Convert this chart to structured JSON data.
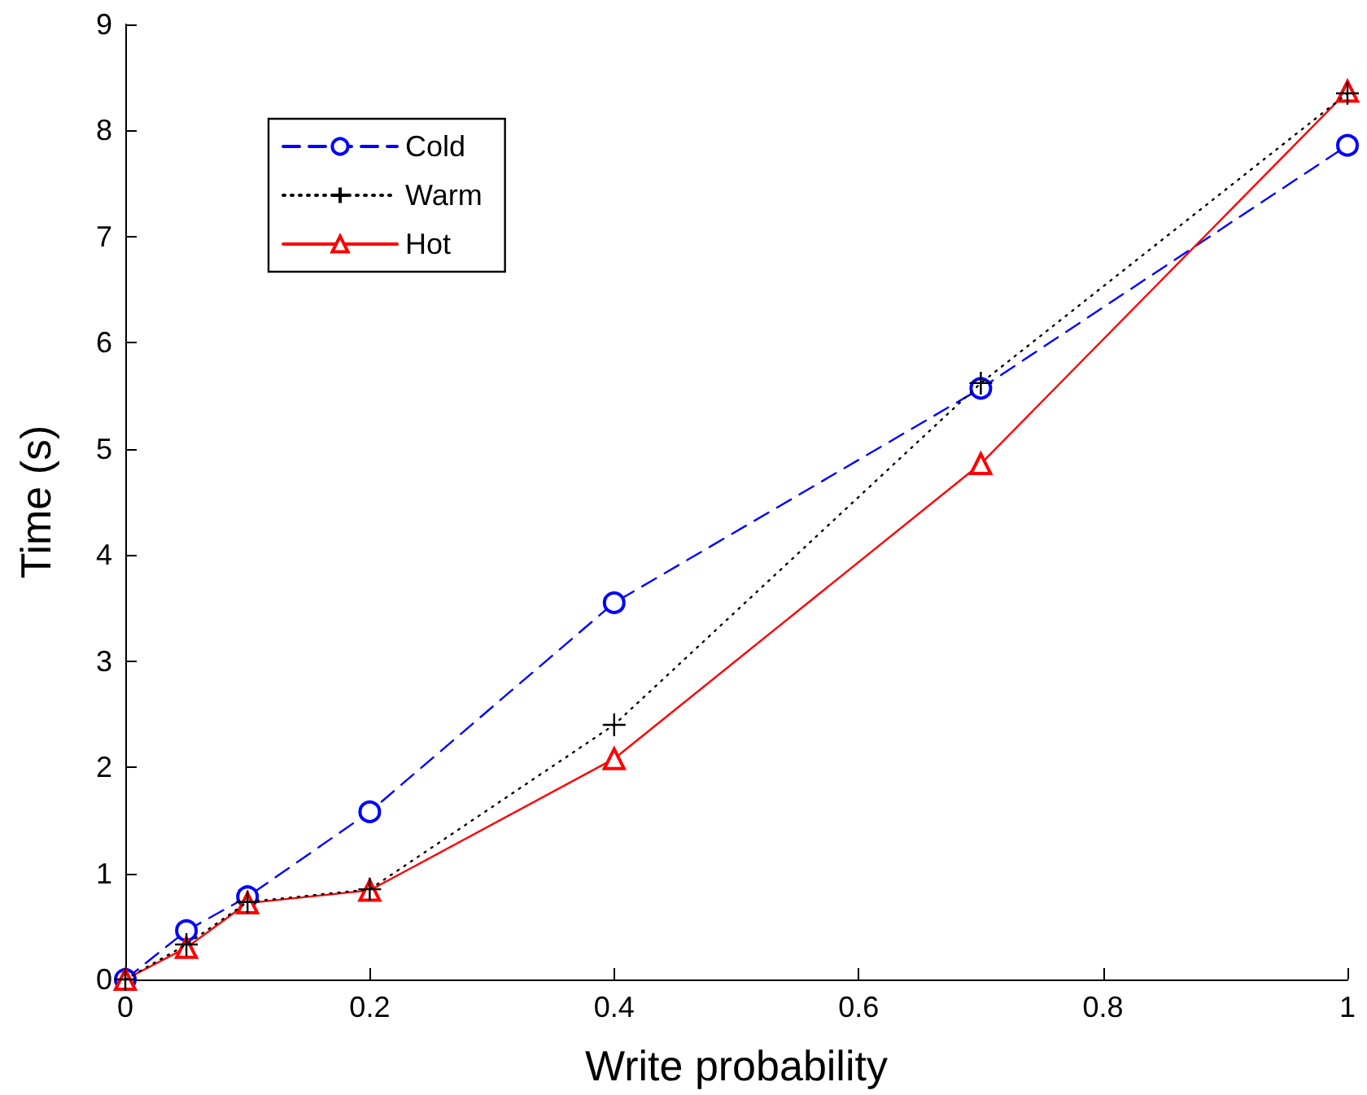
{
  "chart_data": {
    "type": "line",
    "xlabel": "Write probability",
    "ylabel": "Time (s)",
    "x": [
      0,
      0.05,
      0.1,
      0.2,
      0.4,
      0.7,
      1
    ],
    "series": [
      {
        "name": "Cold",
        "color": "#0000ff",
        "marker": "circle",
        "line_style": "dashed",
        "values": [
          0,
          0.46,
          0.78,
          1.58,
          3.55,
          5.57,
          7.86
        ]
      },
      {
        "name": "Warm",
        "color": "#000000",
        "marker": "cross",
        "line_style": "dotted",
        "values": [
          0,
          0.33,
          0.73,
          0.85,
          2.4,
          5.62,
          8.35
        ]
      },
      {
        "name": "Hot",
        "color": "#ff0000",
        "marker": "triangle",
        "line_style": "solid",
        "values": [
          0,
          0.3,
          0.72,
          0.84,
          2.08,
          4.86,
          8.37
        ]
      }
    ],
    "xlim": [
      0,
      1
    ],
    "xticks": [
      0,
      0.2,
      0.4,
      0.6,
      0.8,
      1
    ],
    "ylim": [
      0,
      9
    ],
    "yticks": [
      0,
      1,
      2,
      3,
      4,
      5,
      6,
      7,
      8,
      9
    ],
    "grid": false,
    "legend": "top left"
  }
}
